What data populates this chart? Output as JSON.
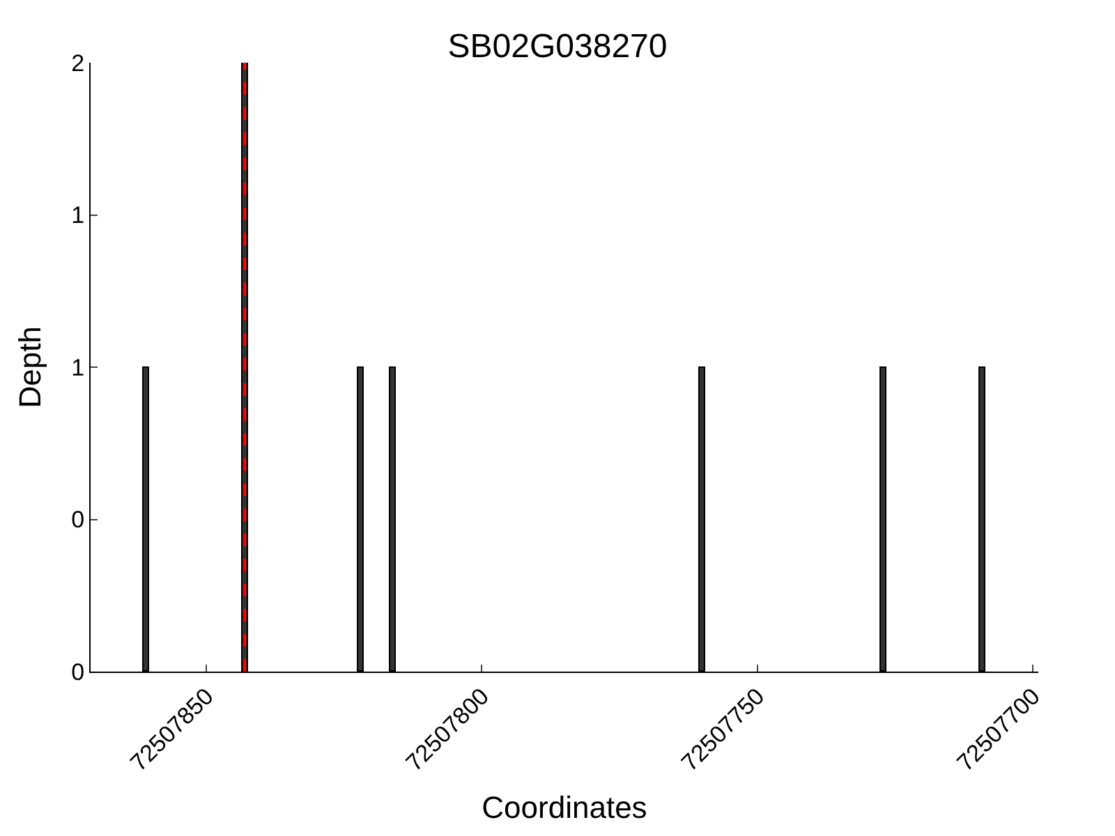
{
  "chart_data": {
    "type": "bar",
    "title": "SB02G038270",
    "xlabel": "Coordinates",
    "ylabel": "Depth",
    "x": [
      72507861,
      72507843,
      72507822,
      72507816,
      72507760,
      72507727,
      72507709
    ],
    "values": [
      1,
      2,
      1,
      1,
      1,
      1,
      1
    ],
    "color": "#333333",
    "xlim": [
      72507871,
      72507699
    ],
    "xticks": [
      72507850,
      72507800,
      72507750,
      72507700
    ],
    "ylim": [
      0,
      2
    ],
    "yticks": [
      {
        "value": 0,
        "label": "0"
      },
      {
        "value": 0.5,
        "label": "0"
      },
      {
        "value": 1,
        "label": "1"
      },
      {
        "value": 1.5,
        "label": "1"
      },
      {
        "value": 2,
        "label": "2"
      }
    ],
    "ref_lines": [
      {
        "axis": "x",
        "value": 72507843,
        "color": "#ff0000",
        "line_style": "dashed"
      }
    ]
  }
}
